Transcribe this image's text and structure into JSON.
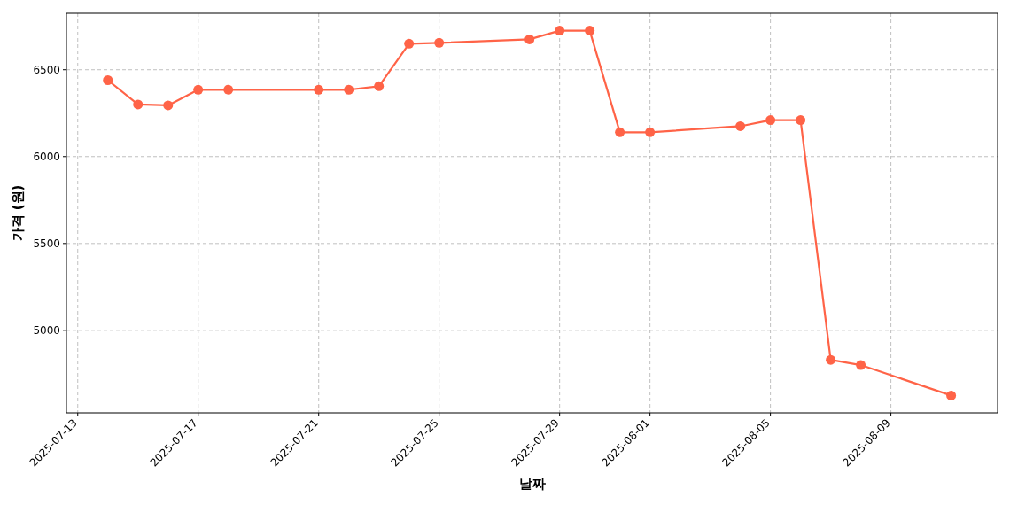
{
  "chart_data": {
    "type": "line",
    "xlabel": "날짜",
    "ylabel": "가격 (원)",
    "x": [
      "2025-07-14",
      "2025-07-15",
      "2025-07-16",
      "2025-07-17",
      "2025-07-18",
      "2025-07-21",
      "2025-07-22",
      "2025-07-23",
      "2025-07-24",
      "2025-07-25",
      "2025-07-28",
      "2025-07-29",
      "2025-07-30",
      "2025-07-31",
      "2025-08-01",
      "2025-08-04",
      "2025-08-05",
      "2025-08-06",
      "2025-08-07",
      "2025-08-08",
      "2025-08-11"
    ],
    "series": [
      {
        "color": "#ff6347",
        "values": [
          6440,
          6300,
          6295,
          6385,
          6385,
          6385,
          6385,
          6405,
          6650,
          6655,
          6675,
          6725,
          6725,
          6140,
          6140,
          6175,
          6210,
          6210,
          4830,
          4800,
          4625
        ]
      }
    ],
    "xlim": [
      "2025-07-12T15:00",
      "2025-08-12T13:00"
    ],
    "ylim": [
      4525,
      6825
    ],
    "xticks": [
      "2025-07-13",
      "2025-07-17",
      "2025-07-21",
      "2025-07-25",
      "2025-07-29",
      "2025-08-01",
      "2025-08-05",
      "2025-08-09"
    ],
    "yticks": [
      5000,
      5500,
      6000,
      6500
    ],
    "grid": true,
    "marker": "circle",
    "line_style": "solid"
  }
}
